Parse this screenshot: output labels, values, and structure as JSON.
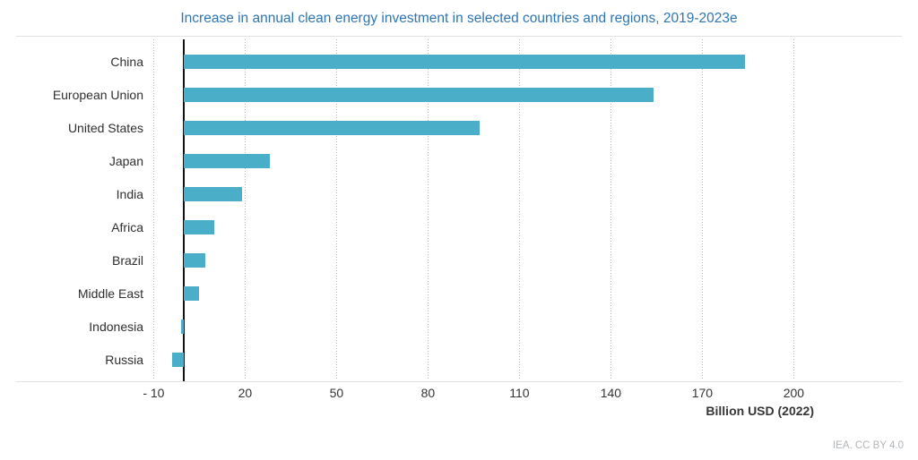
{
  "header": {
    "title": "Increase in annual clean energy investment in selected countries and regions, 2019-2023e"
  },
  "chart_data": {
    "type": "bar",
    "orientation": "horizontal",
    "title": "Increase in annual clean energy investment in selected countries and regions, 2019-2023e",
    "categories": [
      "China",
      "European Union",
      "United States",
      "Japan",
      "India",
      "Africa",
      "Brazil",
      "Middle East",
      "Indonesia",
      "Russia"
    ],
    "values": [
      184,
      154,
      97,
      28,
      19,
      10,
      7,
      5,
      -1,
      -4
    ],
    "xlabel": "Billion USD (2022)",
    "ylabel": "",
    "xlim": [
      -10,
      200
    ],
    "xticks": [
      -10,
      20,
      50,
      80,
      110,
      140,
      170,
      200
    ],
    "xtick_labels": [
      "- 10",
      "20",
      "50",
      "80",
      "110",
      "140",
      "170",
      "200"
    ],
    "grid": "vertical-dotted",
    "legend": "none",
    "bar_color": "#4BAEC9",
    "title_color": "#2E75B6",
    "axis_color": "#111111",
    "gridline_color": "#b9b9b9"
  },
  "footer": {
    "attribution": "IEA. CC BY 4.0"
  }
}
